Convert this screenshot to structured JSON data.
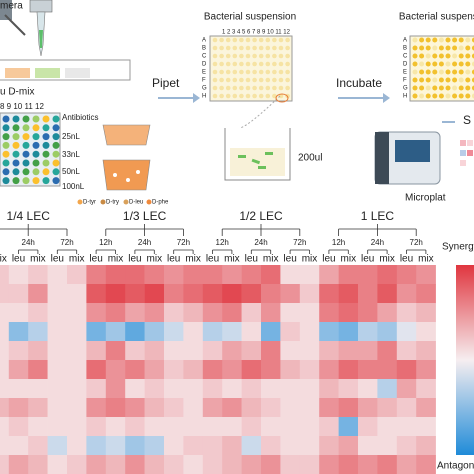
{
  "workflow": {
    "camera_label": "mera",
    "plate_labels": "u    D-mix",
    "plate_columns": "8  9 10 11 12",
    "antibiotics_title": "Antibiotics",
    "volumes": [
      "25nL",
      "33nL",
      "50nL",
      "100nL"
    ],
    "amino_acids": [
      "D-tyr",
      "D-try",
      "D-leu",
      "D-phe"
    ],
    "step1": "Pipet",
    "plate1_title": "Bacterial suspension",
    "plate_rows": [
      "A",
      "B",
      "C",
      "D",
      "E",
      "F",
      "G",
      "H"
    ],
    "plate_cols": "1 2 3 4 5 6 7 8 9 10 11 12",
    "volume_well": "200ul",
    "step2": "Incubate",
    "plate2_title": "Bacterial suspension",
    "step3": "S",
    "reader_label": "Microplat"
  },
  "heatmap": {
    "groups": [
      "1/4 LEC",
      "1/3 LEC",
      "1/2 LEC",
      "1 LEC"
    ],
    "times": [
      "12h",
      "24h",
      "72h"
    ],
    "subcols": [
      "leu",
      "mix"
    ],
    "scale_top": "Synergy",
    "scale_bottom": "Antagonism",
    "rows": [
      [
        0.3,
        0.2,
        0.1,
        0.2,
        0.1,
        0.2,
        0.6,
        0.7,
        0.7,
        0.6,
        0.5,
        0.6,
        0.6,
        0.5,
        0.6,
        0.7,
        0.1,
        0.1,
        0.4,
        0.6,
        0.6,
        0.7,
        0.6,
        0.5
      ],
      [
        0.3,
        0.2,
        0.2,
        0.5,
        0.1,
        0.1,
        0.8,
        0.9,
        0.8,
        0.9,
        0.6,
        0.7,
        0.8,
        0.9,
        0.8,
        0.6,
        0.5,
        0.2,
        0.7,
        0.8,
        0.6,
        0.8,
        0.5,
        0.6
      ],
      [
        0.2,
        0.1,
        0.1,
        0.2,
        0.1,
        0.1,
        0.5,
        0.6,
        0.4,
        0.5,
        0.2,
        0.3,
        0.5,
        0.6,
        0.2,
        0.5,
        0.1,
        0.1,
        0.6,
        0.7,
        0.6,
        0.4,
        0.2,
        0.3
      ],
      [
        0.1,
        0.1,
        -0.5,
        -0.3,
        0.1,
        0.1,
        -0.6,
        -0.4,
        -0.7,
        -0.4,
        -0.2,
        0.1,
        -0.3,
        -0.2,
        0.1,
        -0.6,
        0.2,
        0.1,
        -0.5,
        -0.6,
        -0.3,
        -0.4,
        -0.1,
        0.1
      ],
      [
        0.1,
        0.1,
        0.2,
        0.3,
        0.1,
        0.1,
        0.3,
        0.6,
        0.2,
        0.3,
        0.1,
        0.1,
        0.2,
        0.4,
        0.3,
        0.6,
        0.1,
        0.1,
        0.3,
        0.4,
        0.4,
        0.6,
        0.2,
        0.3
      ],
      [
        0.3,
        0.1,
        0.4,
        0.6,
        0.1,
        0.1,
        0.7,
        0.5,
        0.6,
        0.4,
        0.2,
        0.3,
        0.6,
        0.5,
        0.7,
        0.6,
        0.3,
        0.2,
        0.5,
        0.7,
        0.6,
        0.6,
        0.7,
        0.5
      ],
      [
        0.1,
        0.1,
        0.1,
        0.1,
        0.1,
        0.1,
        0.2,
        0.5,
        0.1,
        0.2,
        0.1,
        0.1,
        0.2,
        0.1,
        0.2,
        0.1,
        0.1,
        0.1,
        0.3,
        0.2,
        0.1,
        -0.3,
        0.4,
        0.2
      ],
      [
        0.5,
        0.3,
        0.4,
        0.3,
        0.1,
        0.1,
        0.5,
        0.6,
        0.5,
        0.3,
        0.2,
        0.1,
        0.4,
        0.5,
        0.3,
        0.2,
        0.1,
        0.1,
        0.5,
        0.6,
        0.4,
        0.3,
        0.2,
        0.4
      ],
      [
        0.1,
        0.1,
        0.2,
        0.1,
        0.1,
        0.1,
        0.2,
        0.1,
        0.2,
        0.1,
        0.1,
        0.1,
        0.1,
        0.1,
        0.2,
        0.1,
        0.1,
        0.1,
        0.2,
        -0.6,
        0.2,
        0.1,
        0.1,
        0.1
      ],
      [
        0.2,
        0.1,
        0.1,
        0.2,
        -0.2,
        0.1,
        -0.3,
        -0.2,
        -0.4,
        -0.3,
        0.1,
        0.2,
        0.2,
        0.3,
        -0.2,
        0.2,
        0.1,
        0.1,
        0.3,
        0.4,
        0.1,
        0.1,
        0.2,
        0.3
      ],
      [
        0.3,
        0.2,
        0.4,
        0.3,
        0.1,
        0.2,
        0.4,
        0.3,
        0.5,
        0.3,
        0.2,
        0.1,
        0.2,
        0.3,
        0.4,
        0.5,
        0.2,
        0.2,
        0.5,
        0.6,
        0.5,
        0.6,
        0.4,
        0.5
      ]
    ]
  }
}
